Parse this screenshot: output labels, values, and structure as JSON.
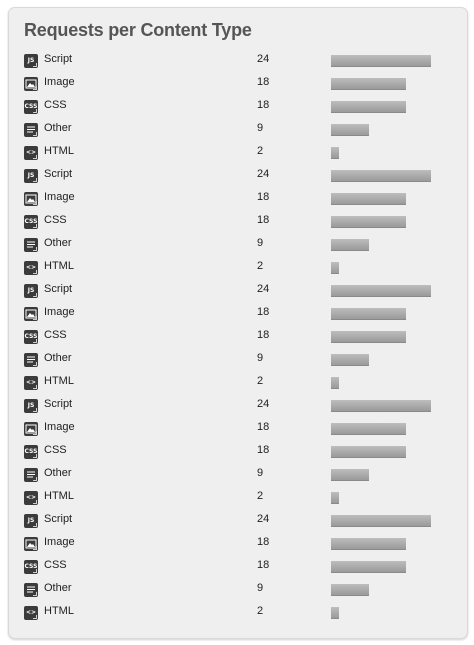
{
  "title": "Requests per Content Type",
  "max_count": 24,
  "rows": [
    {
      "icon": "js-file-icon",
      "badge": "JS",
      "label": "Script",
      "count": "24"
    },
    {
      "icon": "image-file-icon",
      "badge": "",
      "label": "Image",
      "count": "18"
    },
    {
      "icon": "css-file-icon",
      "badge": "CSS",
      "label": "CSS",
      "count": "18"
    },
    {
      "icon": "text-file-icon",
      "badge": "",
      "label": "Other",
      "count": "9"
    },
    {
      "icon": "html-file-icon",
      "badge": "<>",
      "label": "HTML",
      "count": "2"
    },
    {
      "icon": "js-file-icon",
      "badge": "JS",
      "label": "Script",
      "count": "24"
    },
    {
      "icon": "image-file-icon",
      "badge": "",
      "label": "Image",
      "count": "18"
    },
    {
      "icon": "css-file-icon",
      "badge": "CSS",
      "label": "CSS",
      "count": "18"
    },
    {
      "icon": "text-file-icon",
      "badge": "",
      "label": "Other",
      "count": "9"
    },
    {
      "icon": "html-file-icon",
      "badge": "<>",
      "label": "HTML",
      "count": "2"
    },
    {
      "icon": "js-file-icon",
      "badge": "JS",
      "label": "Script",
      "count": "24"
    },
    {
      "icon": "image-file-icon",
      "badge": "",
      "label": "Image",
      "count": "18"
    },
    {
      "icon": "css-file-icon",
      "badge": "CSS",
      "label": "CSS",
      "count": "18"
    },
    {
      "icon": "text-file-icon",
      "badge": "",
      "label": "Other",
      "count": "9"
    },
    {
      "icon": "html-file-icon",
      "badge": "<>",
      "label": "HTML",
      "count": "2"
    },
    {
      "icon": "js-file-icon",
      "badge": "JS",
      "label": "Script",
      "count": "24"
    },
    {
      "icon": "image-file-icon",
      "badge": "",
      "label": "Image",
      "count": "18"
    },
    {
      "icon": "css-file-icon",
      "badge": "CSS",
      "label": "CSS",
      "count": "18"
    },
    {
      "icon": "text-file-icon",
      "badge": "",
      "label": "Other",
      "count": "9"
    },
    {
      "icon": "html-file-icon",
      "badge": "<>",
      "label": "HTML",
      "count": "2"
    },
    {
      "icon": "js-file-icon",
      "badge": "JS",
      "label": "Script",
      "count": "24"
    },
    {
      "icon": "image-file-icon",
      "badge": "",
      "label": "Image",
      "count": "18"
    },
    {
      "icon": "css-file-icon",
      "badge": "CSS",
      "label": "CSS",
      "count": "18"
    },
    {
      "icon": "text-file-icon",
      "badge": "",
      "label": "Other",
      "count": "9"
    },
    {
      "icon": "html-file-icon",
      "badge": "<>",
      "label": "HTML",
      "count": "2"
    }
  ]
}
